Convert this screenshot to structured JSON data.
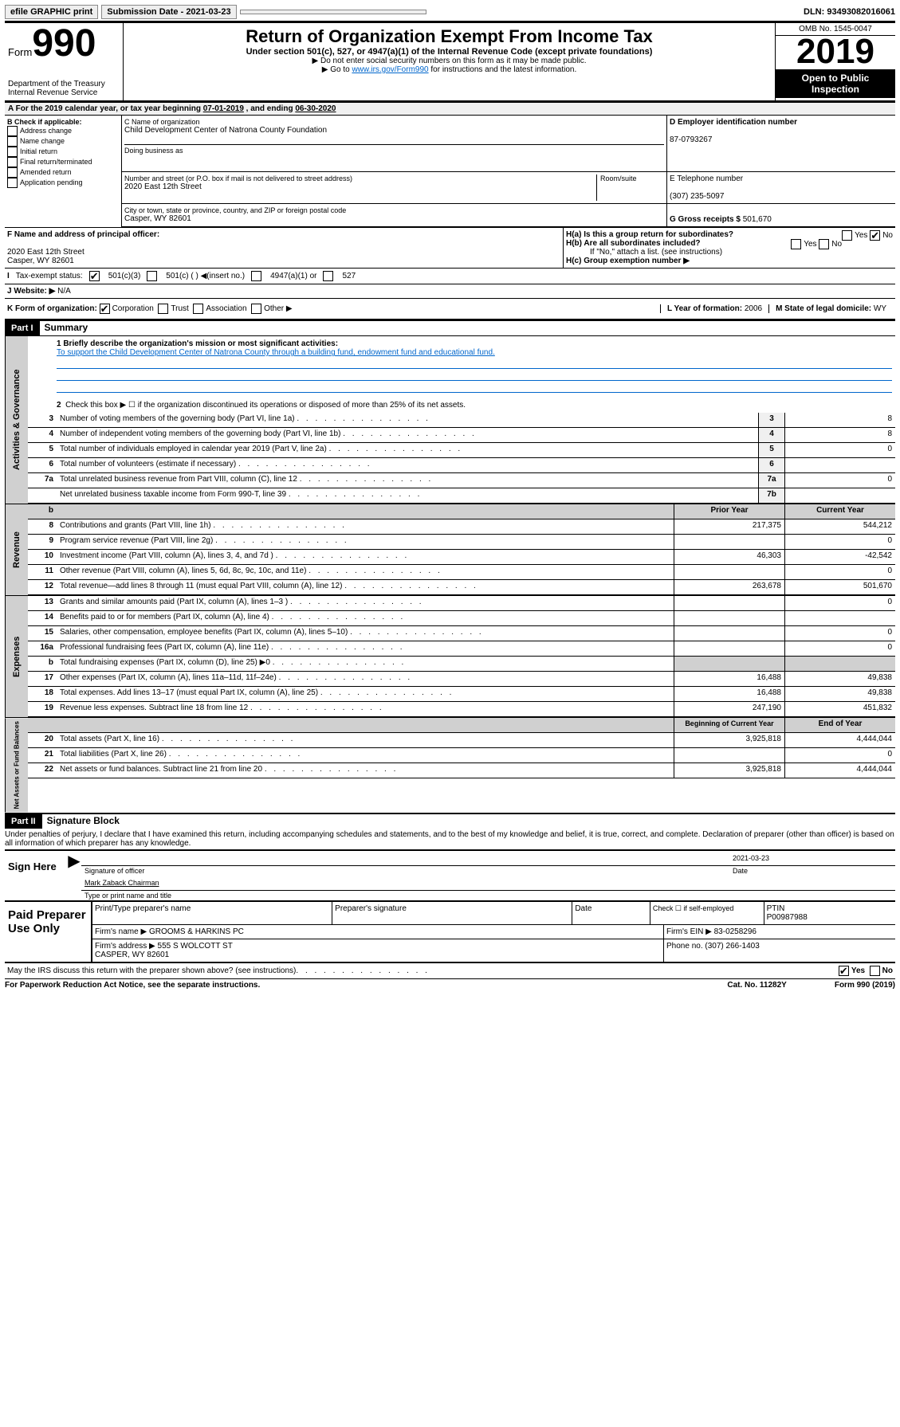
{
  "toolbar": {
    "efile": "efile GRAPHIC print",
    "sub_label": "Submission Date - 2021-03-23",
    "dln": "DLN: 93493082016061"
  },
  "header": {
    "form": "Form",
    "form_num": "990",
    "dept": "Department of the Treasury\nInternal Revenue Service",
    "title": "Return of Organization Exempt From Income Tax",
    "sub1": "Under section 501(c), 527, or 4947(a)(1) of the Internal Revenue Code (except private foundations)",
    "sub2": "▶ Do not enter social security numbers on this form as it may be made public.",
    "sub3_pre": "▶ Go to ",
    "sub3_link": "www.irs.gov/Form990",
    "sub3_post": " for instructions and the latest information.",
    "omb": "OMB No. 1545-0047",
    "year": "2019",
    "otp": "Open to Public Inspection"
  },
  "period": {
    "label_pre": "A For the 2019 calendar year, or tax year beginning ",
    "begin": "07-01-2019",
    "mid": " , and ending ",
    "end": "06-30-2020"
  },
  "b": {
    "label": "B Check if applicable:",
    "items": [
      "Address change",
      "Name change",
      "Initial return",
      "Final return/terminated",
      "Amended return",
      "Application pending"
    ]
  },
  "c": {
    "name_label": "C Name of organization",
    "name": "Child Development Center of Natrona County Foundation",
    "dba_label": "Doing business as",
    "addr_label": "Number and street (or P.O. box if mail is not delivered to street address)",
    "room_label": "Room/suite",
    "addr": "2020 East 12th Street",
    "city_label": "City or town, state or province, country, and ZIP or foreign postal code",
    "city": "Casper, WY  82601"
  },
  "d": {
    "label": "D Employer identification number",
    "val": "87-0793267"
  },
  "e": {
    "label": "E Telephone number",
    "val": "(307) 235-5097"
  },
  "g": {
    "label": "G Gross receipts $",
    "val": "501,670"
  },
  "f": {
    "label": "F Name and address of principal officer:",
    "addr": "2020 East 12th Street\nCasper, WY  82601"
  },
  "h": {
    "a": "H(a)  Is this a group return for subordinates?",
    "b": "H(b)  Are all subordinates included?",
    "b_note": "If \"No,\" attach a list. (see instructions)",
    "c": "H(c)  Group exemption number ▶",
    "yes": "Yes",
    "no": "No"
  },
  "i": {
    "label": "Tax-exempt status:",
    "o1": "501(c)(3)",
    "o2": "501(c) (  ) ◀(insert no.)",
    "o3": "4947(a)(1) or",
    "o4": "527"
  },
  "j": {
    "label": "Website: ▶",
    "val": "N/A"
  },
  "k": {
    "label": "K Form of organization:",
    "corp": "Corporation",
    "trust": "Trust",
    "assoc": "Association",
    "other": "Other ▶",
    "l_label": "L Year of formation:",
    "l_val": "2006",
    "m_label": "M State of legal domicile:",
    "m_val": "WY"
  },
  "part1": {
    "hdr": "Part I",
    "title": "Summary",
    "l1_label": "1  Briefly describe the organization's mission or most significant activities:",
    "l1_val": "To support the Child Development Center of Natrona County through a building fund, endowment fund and educational fund.",
    "l2": "Check this box ▶ ☐  if the organization discontinued its operations or disposed of more than 25% of its net assets.",
    "lines_gov": [
      {
        "n": "3",
        "t": "Number of voting members of the governing body (Part VI, line 1a)",
        "box": "3",
        "v": "8"
      },
      {
        "n": "4",
        "t": "Number of independent voting members of the governing body (Part VI, line 1b)",
        "box": "4",
        "v": "8"
      },
      {
        "n": "5",
        "t": "Total number of individuals employed in calendar year 2019 (Part V, line 2a)",
        "box": "5",
        "v": "0"
      },
      {
        "n": "6",
        "t": "Total number of volunteers (estimate if necessary)",
        "box": "6",
        "v": ""
      },
      {
        "n": "7a",
        "t": "Total unrelated business revenue from Part VIII, column (C), line 12",
        "box": "7a",
        "v": "0"
      },
      {
        "n": "",
        "t": "Net unrelated business taxable income from Form 990-T, line 39",
        "box": "7b",
        "v": ""
      }
    ],
    "col_prior": "Prior Year",
    "col_curr": "Current Year",
    "lines_rev": [
      {
        "n": "8",
        "t": "Contributions and grants (Part VIII, line 1h)",
        "p": "217,375",
        "c": "544,212"
      },
      {
        "n": "9",
        "t": "Program service revenue (Part VIII, line 2g)",
        "p": "",
        "c": "0"
      },
      {
        "n": "10",
        "t": "Investment income (Part VIII, column (A), lines 3, 4, and 7d )",
        "p": "46,303",
        "c": "-42,542"
      },
      {
        "n": "11",
        "t": "Other revenue (Part VIII, column (A), lines 5, 6d, 8c, 9c, 10c, and 11e)",
        "p": "",
        "c": "0"
      },
      {
        "n": "12",
        "t": "Total revenue—add lines 8 through 11 (must equal Part VIII, column (A), line 12)",
        "p": "263,678",
        "c": "501,670"
      }
    ],
    "lines_exp": [
      {
        "n": "13",
        "t": "Grants and similar amounts paid (Part IX, column (A), lines 1–3 )",
        "p": "",
        "c": "0"
      },
      {
        "n": "14",
        "t": "Benefits paid to or for members (Part IX, column (A), line 4)",
        "p": "",
        "c": ""
      },
      {
        "n": "15",
        "t": "Salaries, other compensation, employee benefits (Part IX, column (A), lines 5–10)",
        "p": "",
        "c": "0"
      },
      {
        "n": "16a",
        "t": "Professional fundraising fees (Part IX, column (A), line 11e)",
        "p": "",
        "c": "0"
      },
      {
        "n": "b",
        "t": "Total fundraising expenses (Part IX, column (D), line 25) ▶0",
        "p": "shade",
        "c": "shade"
      },
      {
        "n": "17",
        "t": "Other expenses (Part IX, column (A), lines 11a–11d, 11f–24e)",
        "p": "16,488",
        "c": "49,838"
      },
      {
        "n": "18",
        "t": "Total expenses. Add lines 13–17 (must equal Part IX, column (A), line 25)",
        "p": "16,488",
        "c": "49,838"
      },
      {
        "n": "19",
        "t": "Revenue less expenses. Subtract line 18 from line 12",
        "p": "247,190",
        "c": "451,832"
      }
    ],
    "col_begin": "Beginning of Current Year",
    "col_end": "End of Year",
    "lines_net": [
      {
        "n": "20",
        "t": "Total assets (Part X, line 16)",
        "p": "3,925,818",
        "c": "4,444,044"
      },
      {
        "n": "21",
        "t": "Total liabilities (Part X, line 26)",
        "p": "",
        "c": "0"
      },
      {
        "n": "22",
        "t": "Net assets or fund balances. Subtract line 21 from line 20",
        "p": "3,925,818",
        "c": "4,444,044"
      }
    ],
    "vtab_gov": "Activities & Governance",
    "vtab_rev": "Revenue",
    "vtab_exp": "Expenses",
    "vtab_net": "Net Assets or Fund Balances"
  },
  "part2": {
    "hdr": "Part II",
    "title": "Signature Block",
    "decl": "Under penalties of perjury, I declare that I have examined this return, including accompanying schedules and statements, and to the best of my knowledge and belief, it is true, correct, and complete. Declaration of preparer (other than officer) is based on all information of which preparer has any knowledge.",
    "sign_here": "Sign Here",
    "sig_of": "Signature of officer",
    "date_lbl": "Date",
    "date_val": "2021-03-23",
    "name_title": "Mark Zaback  Chairman",
    "type_print": "Type or print name and title",
    "paid": "Paid Preparer Use Only",
    "pp_name": "Print/Type preparer's name",
    "pp_sig": "Preparer's signature",
    "pp_date": "Date",
    "pp_check": "Check ☐ if self-employed",
    "ptin_l": "PTIN",
    "ptin": "P00987988",
    "firm_name_l": "Firm's name    ▶",
    "firm_name": "GROOMS & HARKINS PC",
    "firm_ein_l": "Firm's EIN ▶",
    "firm_ein": "83-0258296",
    "firm_addr_l": "Firm's address ▶",
    "firm_addr": "555 S WOLCOTT ST\nCASPER, WY  82601",
    "phone_l": "Phone no.",
    "phone": "(307) 266-1403",
    "discuss": "May the IRS discuss this return with the preparer shown above? (see instructions)",
    "yes": "Yes",
    "no": "No"
  },
  "footer": {
    "pra": "For Paperwork Reduction Act Notice, see the separate instructions.",
    "cat": "Cat. No. 11282Y",
    "form": "Form 990 (2019)"
  }
}
